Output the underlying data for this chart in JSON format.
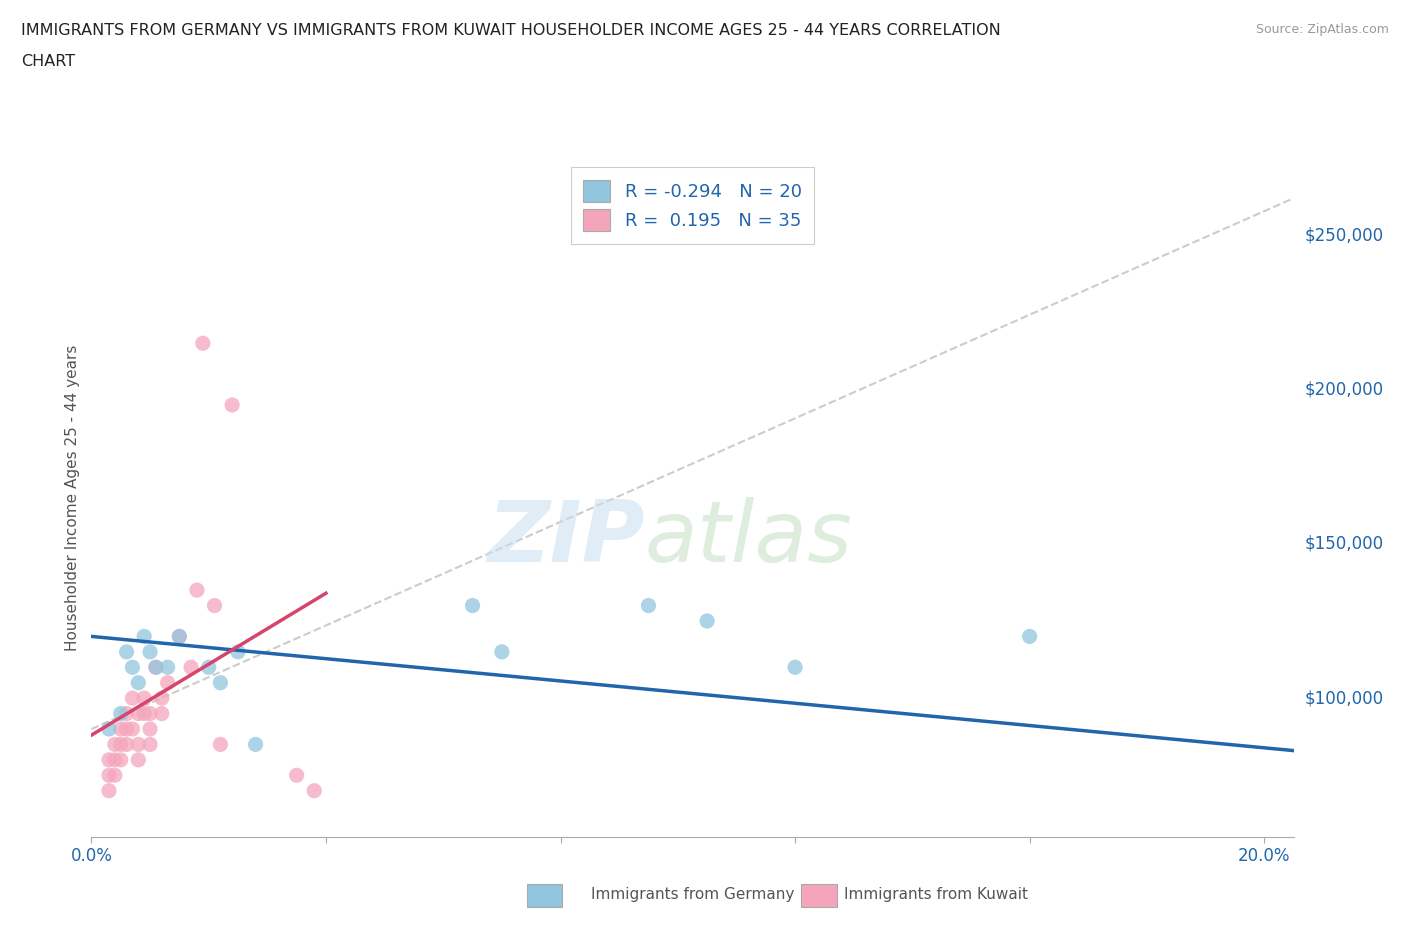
{
  "title_line1": "IMMIGRANTS FROM GERMANY VS IMMIGRANTS FROM KUWAIT HOUSEHOLDER INCOME AGES 25 - 44 YEARS CORRELATION",
  "title_line2": "CHART",
  "source_text": "Source: ZipAtlas.com",
  "ylabel": "Householder Income Ages 25 - 44 years",
  "xlim": [
    0.0,
    0.205
  ],
  "ylim": [
    55000,
    275000
  ],
  "x_ticks": [
    0.0,
    0.04,
    0.08,
    0.12,
    0.16,
    0.2
  ],
  "x_tick_labels": [
    "0.0%",
    "",
    "",
    "",
    "",
    "20.0%"
  ],
  "y_ticks": [
    100000,
    150000,
    200000,
    250000
  ],
  "y_tick_labels": [
    "$100,000",
    "$150,000",
    "$200,000",
    "$250,000"
  ],
  "germany_color": "#92c5de",
  "kuwait_color": "#f4a5bb",
  "germany_R": -0.294,
  "germany_N": 20,
  "kuwait_R": 0.195,
  "kuwait_N": 35,
  "trendline_color_germany": "#2166ac",
  "trendline_color_kuwait": "#d6456e",
  "trendline_overall_color": "#cccccc",
  "watermark_zip": "ZIP",
  "watermark_atlas": "atlas",
  "germany_x": [
    0.003,
    0.005,
    0.006,
    0.007,
    0.008,
    0.009,
    0.01,
    0.011,
    0.013,
    0.015,
    0.02,
    0.022,
    0.025,
    0.028,
    0.065,
    0.07,
    0.095,
    0.105,
    0.12,
    0.16
  ],
  "germany_y": [
    90000,
    95000,
    115000,
    110000,
    105000,
    120000,
    115000,
    110000,
    110000,
    120000,
    110000,
    105000,
    115000,
    85000,
    130000,
    115000,
    130000,
    125000,
    110000,
    120000
  ],
  "kuwait_x": [
    0.003,
    0.003,
    0.003,
    0.004,
    0.004,
    0.004,
    0.005,
    0.005,
    0.005,
    0.006,
    0.006,
    0.006,
    0.007,
    0.007,
    0.008,
    0.008,
    0.008,
    0.009,
    0.009,
    0.01,
    0.01,
    0.01,
    0.011,
    0.012,
    0.012,
    0.013,
    0.015,
    0.017,
    0.018,
    0.019,
    0.021,
    0.022,
    0.024,
    0.035,
    0.038
  ],
  "kuwait_y": [
    80000,
    75000,
    70000,
    85000,
    80000,
    75000,
    90000,
    85000,
    80000,
    95000,
    90000,
    85000,
    100000,
    90000,
    95000,
    85000,
    80000,
    95000,
    100000,
    90000,
    85000,
    95000,
    110000,
    100000,
    95000,
    105000,
    120000,
    110000,
    135000,
    215000,
    130000,
    85000,
    195000,
    75000,
    70000
  ],
  "overall_trendline_x": [
    0.0,
    0.205
  ],
  "overall_trendline_y": [
    90000,
    262000
  ],
  "germany_trend_x": [
    0.0,
    0.205
  ],
  "germany_trend_y": [
    120000,
    83000
  ],
  "kuwait_trend_x": [
    0.0,
    0.04
  ],
  "kuwait_trend_y": [
    88000,
    134000
  ],
  "background_color": "#ffffff",
  "grid_color": "#e0e0e0",
  "axis_color": "#aaaaaa",
  "tick_color": "#2166ac"
}
